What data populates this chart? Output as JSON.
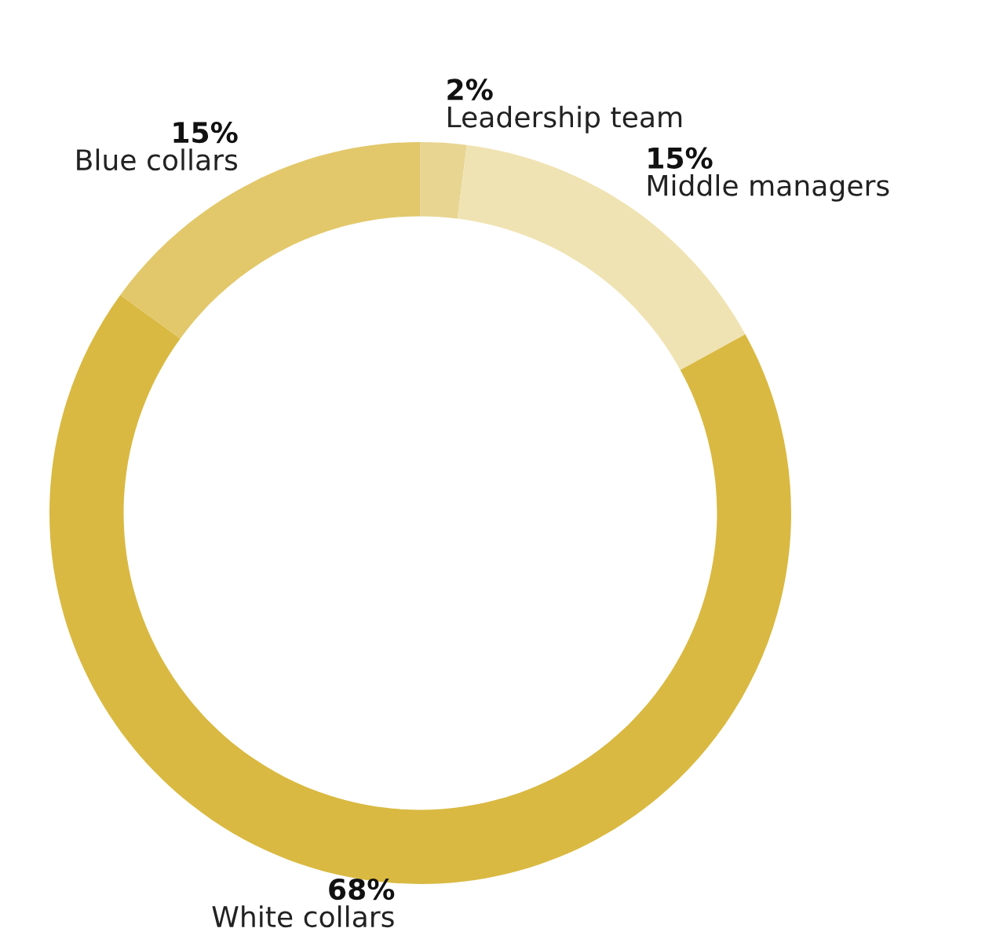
{
  "chart_data": {
    "type": "donut",
    "categories": [
      "Leadership team",
      "Middle managers",
      "White collars",
      "Blue collars"
    ],
    "values": [
      2,
      15,
      68,
      15
    ],
    "colors": [
      "#e8d592",
      "#f0e3b3",
      "#d9b941",
      "#e2c86a"
    ],
    "value_labels": [
      "2%",
      "15%",
      "68%",
      "15%"
    ]
  }
}
